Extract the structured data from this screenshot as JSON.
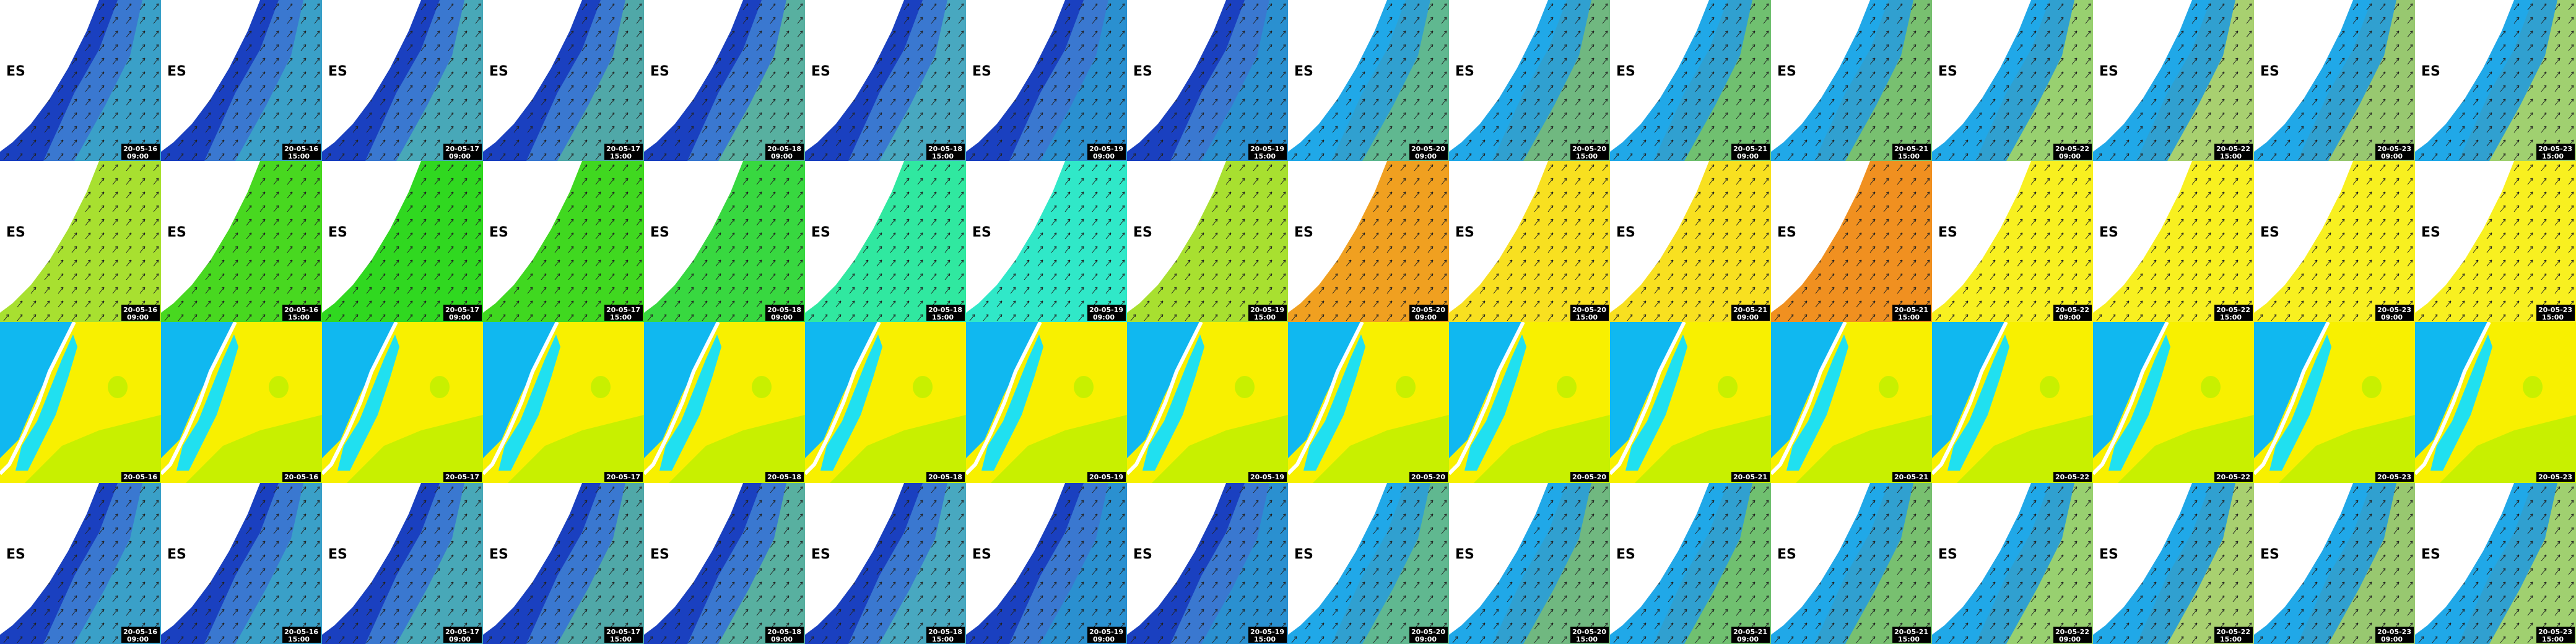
{
  "country_label": "ES",
  "rows": [
    {
      "tiles": [
        {
          "date": "20-05-16",
          "time": "09:00"
        },
        {
          "date": "20-05-16",
          "time": "15:00"
        },
        {
          "date": "20-05-17",
          "time": "09:00"
        },
        {
          "date": "20-05-17",
          "time": "15:00"
        },
        {
          "date": "20-05-18",
          "time": "09:00"
        },
        {
          "date": "20-05-18",
          "time": "15:00"
        },
        {
          "date": "20-05-19",
          "time": "09:00"
        },
        {
          "date": "20-05-19",
          "time": "15:00"
        },
        {
          "date": "20-05-20",
          "time": "09:00"
        },
        {
          "date": "20-05-20",
          "time": "15:00"
        },
        {
          "date": "20-05-21",
          "time": "09:00"
        },
        {
          "date": "20-05-21",
          "time": "15:00"
        },
        {
          "date": "20-05-22",
          "time": "09:00"
        },
        {
          "date": "20-05-22",
          "time": "15:00"
        },
        {
          "date": "20-05-23",
          "time": "09:00"
        },
        {
          "date": "20-05-23",
          "time": "15:00"
        }
      ]
    },
    {
      "tiles": [
        {
          "date": "20-05-16",
          "time": "09:00"
        },
        {
          "date": "20-05-16",
          "time": "15:00"
        },
        {
          "date": "20-05-17",
          "time": "09:00"
        },
        {
          "date": "20-05-17",
          "time": "15:00"
        },
        {
          "date": "20-05-18",
          "time": "09:00"
        },
        {
          "date": "20-05-18",
          "time": "15:00"
        },
        {
          "date": "20-05-19",
          "time": "09:00"
        },
        {
          "date": "20-05-19",
          "time": "15:00"
        },
        {
          "date": "20-05-20",
          "time": "09:00"
        },
        {
          "date": "20-05-20",
          "time": "15:00"
        },
        {
          "date": "20-05-21",
          "time": "09:00"
        },
        {
          "date": "20-05-21",
          "time": "15:00"
        },
        {
          "date": "20-05-22",
          "time": "09:00"
        },
        {
          "date": "20-05-22",
          "time": "15:00"
        },
        {
          "date": "20-05-23",
          "time": "09:00"
        },
        {
          "date": "20-05-23",
          "time": "15:00"
        }
      ]
    },
    {
      "tiles": [
        {
          "date": "20-05-16"
        },
        {
          "date": "20-05-16"
        },
        {
          "date": "20-05-17"
        },
        {
          "date": "20-05-17"
        },
        {
          "date": "20-05-18"
        },
        {
          "date": "20-05-18"
        },
        {
          "date": "20-05-19"
        },
        {
          "date": "20-05-19"
        },
        {
          "date": "20-05-20"
        },
        {
          "date": "20-05-20"
        },
        {
          "date": "20-05-21"
        },
        {
          "date": "20-05-21"
        },
        {
          "date": "20-05-22"
        },
        {
          "date": "20-05-22"
        },
        {
          "date": "20-05-23"
        },
        {
          "date": "20-05-23"
        }
      ]
    },
    {
      "tiles": [
        {
          "date": "20-05-16",
          "time": "09:00"
        },
        {
          "date": "20-05-16",
          "time": "15:00"
        },
        {
          "date": "20-05-17",
          "time": "09:00"
        },
        {
          "date": "20-05-17",
          "time": "15:00"
        },
        {
          "date": "20-05-18",
          "time": "09:00"
        },
        {
          "date": "20-05-18",
          "time": "15:00"
        },
        {
          "date": "20-05-19",
          "time": "09:00"
        },
        {
          "date": "20-05-19",
          "time": "15:00"
        },
        {
          "date": "20-05-20",
          "time": "09:00"
        },
        {
          "date": "20-05-20",
          "time": "15:00"
        },
        {
          "date": "20-05-21",
          "time": "09:00"
        },
        {
          "date": "20-05-21",
          "time": "15:00"
        },
        {
          "date": "20-05-22",
          "time": "09:00"
        },
        {
          "date": "20-05-22",
          "time": "15:00"
        },
        {
          "date": "20-05-23",
          "time": "09:00"
        },
        {
          "date": "20-05-23",
          "time": "15:00"
        }
      ]
    }
  ]
}
